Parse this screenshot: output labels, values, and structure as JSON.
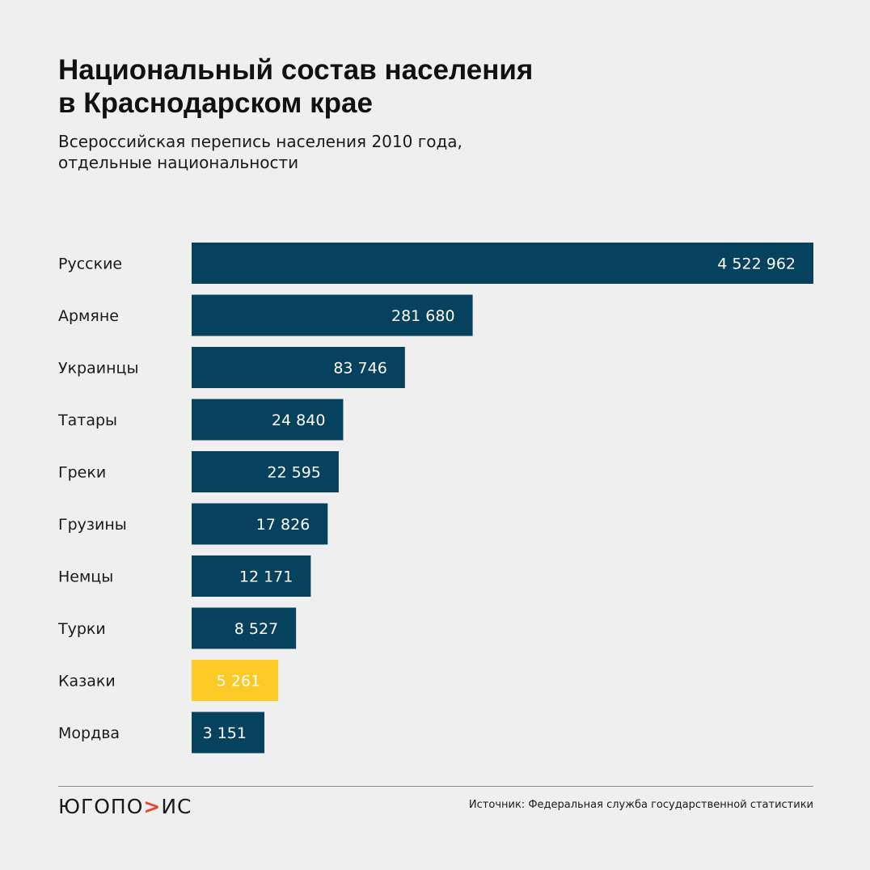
{
  "header": {
    "title_line1": "Национальный состав населения",
    "title_line2": "в Краснодарском крае",
    "subtitle_line1": "Всероссийская перепись населения 2010 года,",
    "subtitle_line2": "отдельные национальности"
  },
  "chart_data": {
    "type": "bar",
    "orientation": "horizontal",
    "title": "Национальный состав населения в Краснодарском крае",
    "subtitle": "Всероссийская перепись населения 2010 года, отдельные национальности",
    "categories": [
      "Русские",
      "Армяне",
      "Украинцы",
      "Татары",
      "Греки",
      "Грузины",
      "Немцы",
      "Турки",
      "Казаки",
      "Мордва"
    ],
    "values": [
      4522962,
      281680,
      83746,
      24840,
      22595,
      17826,
      12171,
      8527,
      5261,
      3151
    ],
    "value_labels": [
      "4 522 962",
      "281 680",
      "83 746",
      "24 840",
      "22 595",
      "17 826",
      "12 171",
      "8 527",
      "5 261",
      "3 151"
    ],
    "scale": "nonlinear (visual emphasis)",
    "bar_color": "#06415d",
    "highlight_category": "Казаки",
    "highlight_color": "#fcca27",
    "grid": false,
    "legend": "none",
    "xlabel": "",
    "ylabel": ""
  },
  "footer": {
    "logo_part1": "ЮГОПО",
    "logo_part2": ">",
    "logo_part3": "ИС",
    "source": "Источник: Федеральная служба государственной статистики"
  }
}
